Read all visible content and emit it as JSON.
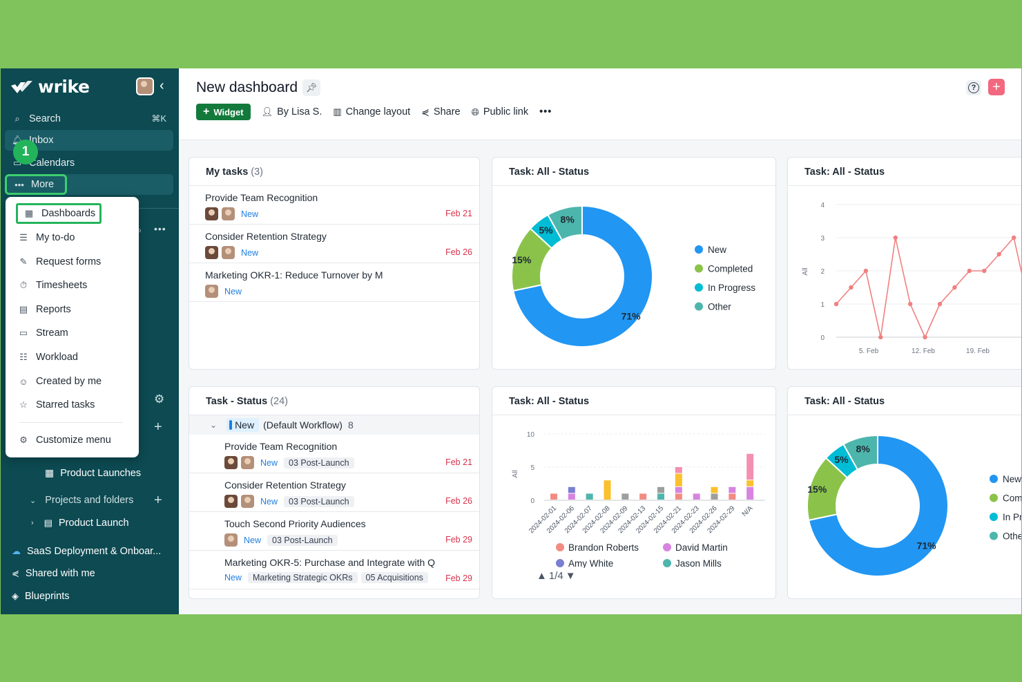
{
  "sidebar": {
    "brand": "wrike",
    "search_label": "Search",
    "search_shortcut": "⌘K",
    "inbox_label": "Inbox",
    "calendars_label": "Calendars",
    "more_label": "More",
    "step_badge": "1",
    "product_launches": "Product Launches",
    "projects_folders": "Projects and folders",
    "product_launch": "Product Launch",
    "saas": "SaaS Deployment & Onboar...",
    "shared": "Shared with me",
    "blueprints": "Blueprints"
  },
  "menu": {
    "dashboards": "Dashboards",
    "my_todo": "My to-do",
    "request_forms": "Request forms",
    "timesheets": "Timesheets",
    "reports": "Reports",
    "stream": "Stream",
    "workload": "Workload",
    "created_by_me": "Created by me",
    "starred_tasks": "Starred tasks",
    "customize_menu": "Customize menu"
  },
  "header": {
    "title": "New dashboard",
    "widget_button": "Widget",
    "owner": "By Lisa S.",
    "change_layout": "Change layout",
    "share": "Share",
    "public_link": "Public link"
  },
  "my_tasks": {
    "title": "My tasks",
    "count": "(3)",
    "items": [
      {
        "title": "Provide Team Recognition",
        "status": "New",
        "due": "Feb 21"
      },
      {
        "title": "Consider Retention Strategy",
        "status": "New",
        "due": "Feb 26"
      },
      {
        "title": "Marketing OKR-1: Reduce Turnover by M",
        "status": "New",
        "due": ""
      }
    ]
  },
  "task_status": {
    "title": "Task - Status",
    "count": "(24)",
    "group_status": "New",
    "group_workflow": "(Default Workflow)",
    "group_count": "8",
    "items": [
      {
        "title": "Provide Team Recognition",
        "status": "New",
        "tags": [
          "03 Post-Launch"
        ],
        "due": "Feb 21"
      },
      {
        "title": "Consider Retention Strategy",
        "status": "New",
        "tags": [
          "03 Post-Launch"
        ],
        "due": "Feb 26"
      },
      {
        "title": "Touch Second Priority Audiences",
        "status": "New",
        "tags": [
          "03 Post-Launch"
        ],
        "due": "Feb 29"
      },
      {
        "title": "Marketing OKR-5: Purchase and Integrate with Q",
        "status": "New",
        "tags": [
          "Marketing Strategic OKRs",
          "05 Acquisitions"
        ],
        "due": "Feb 29"
      }
    ]
  },
  "donut_card": {
    "title": "Task: All - Status"
  },
  "line_card": {
    "title": "Task: All - Status"
  },
  "bar_card": {
    "title": "Task: All - Status",
    "pager": "1/4"
  },
  "donut_card2": {
    "title": "Task: All - Status"
  },
  "chart_data": [
    {
      "type": "pie",
      "title": "Task: All - Status",
      "categories": [
        "New",
        "Completed",
        "In Progress",
        "Other"
      ],
      "values": [
        71,
        15,
        5,
        8
      ],
      "labels": [
        "71%",
        "15%",
        "5%",
        "8%"
      ],
      "colors": [
        "#2196f3",
        "#8bc34a",
        "#00bcd4",
        "#4db6ac"
      ],
      "legend": "right"
    },
    {
      "type": "line",
      "title": "Task: All - Status",
      "ylabel": "All",
      "x_ticks": [
        "5. Feb",
        "12. Feb",
        "19. Feb"
      ],
      "y_ticks": [
        0,
        1,
        2,
        3,
        4
      ],
      "ylim": [
        0,
        4
      ],
      "values": [
        1,
        1.5,
        2,
        0,
        3,
        1,
        0,
        1,
        1.5,
        2,
        2,
        2.5,
        3,
        1,
        1
      ],
      "color": "#f08080"
    },
    {
      "type": "bar",
      "title": "Task: All - Status",
      "ylabel": "All",
      "y_ticks": [
        0,
        5,
        10
      ],
      "ylim": [
        0,
        10
      ],
      "categories": [
        "2024-02-01",
        "2024-02-06",
        "2024-02-07",
        "2024-02-08",
        "2024-02-09",
        "2024-02-13",
        "2024-02-15",
        "2024-02-21",
        "2024-02-23",
        "2024-02-26",
        "2024-02-29",
        "N/A"
      ],
      "series": [
        {
          "name": "Brandon Roberts",
          "color": "#f28b82",
          "values": [
            1,
            0,
            0,
            0,
            0,
            1,
            0,
            1,
            0,
            0,
            1,
            0
          ]
        },
        {
          "name": "David Martin",
          "color": "#d784e0",
          "values": [
            0,
            1,
            0,
            0,
            0,
            0,
            0,
            1,
            1,
            0,
            1,
            2
          ]
        },
        {
          "name": "Amy White",
          "color": "#7b7fd1",
          "values": [
            0,
            1,
            0,
            0,
            0,
            0,
            0,
            0,
            0,
            0,
            0,
            0
          ]
        },
        {
          "name": "Jason Mills",
          "color": "#4db6ac",
          "values": [
            0,
            0,
            1,
            0,
            0,
            0,
            1,
            0,
            0,
            0,
            0,
            0
          ]
        },
        {
          "name": "",
          "color": "#9e9e9e",
          "values": [
            0,
            0,
            0,
            0,
            1,
            0,
            1,
            0,
            0,
            1,
            0,
            0
          ]
        },
        {
          "name": "",
          "color": "#fbc02d",
          "values": [
            0,
            0,
            0,
            3,
            0,
            0,
            0,
            2,
            0,
            1,
            0,
            1
          ]
        },
        {
          "name": "",
          "color": "#f48fb1",
          "values": [
            0,
            0,
            0,
            0,
            0,
            0,
            0,
            1,
            0,
            0,
            0,
            4
          ]
        }
      ],
      "legend": "bottom"
    },
    {
      "type": "pie",
      "title": "Task: All - Status",
      "categories": [
        "New",
        "Completed",
        "In Progress",
        "Other"
      ],
      "legend_visible": [
        "New",
        "Com",
        "In Pr",
        "Othe"
      ],
      "values": [
        71,
        15,
        5,
        8
      ],
      "labels": [
        "71%",
        "15%",
        "5%",
        "8%"
      ],
      "colors": [
        "#2196f3",
        "#8bc34a",
        "#00bcd4",
        "#4db6ac"
      ],
      "legend": "right"
    }
  ]
}
